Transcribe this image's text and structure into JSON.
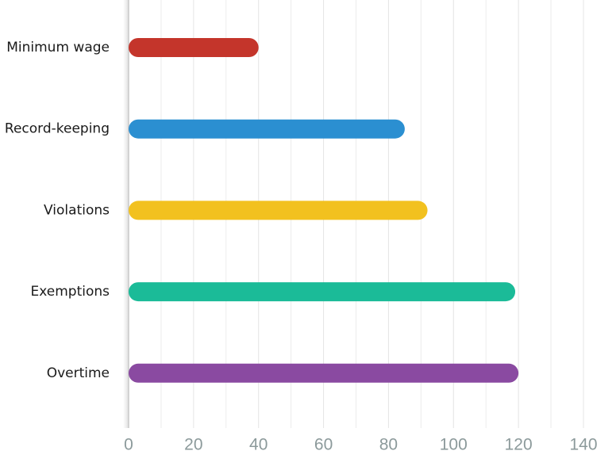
{
  "chart_data": {
    "type": "bar",
    "orientation": "horizontal",
    "categories": [
      "Minimum wage",
      "Record-keeping",
      "Violations",
      "Exemptions",
      "Overtime"
    ],
    "values": [
      40,
      85,
      92,
      119,
      120
    ],
    "colors": [
      "#c4352b",
      "#2b8fd1",
      "#f2c11f",
      "#1bbb98",
      "#8a4aa1"
    ],
    "xlim": [
      0,
      140
    ],
    "xticks": [
      0,
      20,
      40,
      60,
      80,
      100,
      120,
      140
    ],
    "minor_xticks": [
      10,
      30,
      50,
      70,
      90,
      110,
      130
    ],
    "grid": true
  }
}
